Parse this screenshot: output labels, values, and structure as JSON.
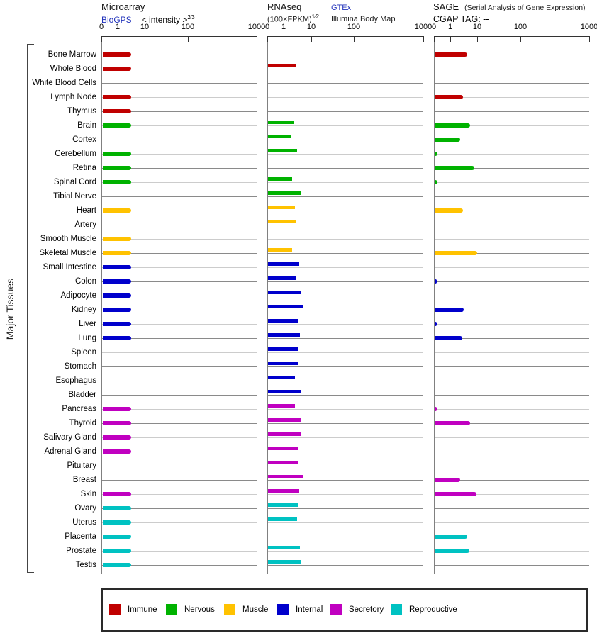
{
  "side_label": "Major Tissues",
  "headers": {
    "microarray": {
      "title": "Microarray",
      "link": "BioGPS",
      "intensity_label": "< intensity >",
      "intensity_sup": "2⁄3"
    },
    "rnaseq": {
      "title": "RNAseq",
      "formula": "(100×FPKM)",
      "formula_sup": "1⁄2",
      "link": "GTEx",
      "link_subtitle": "Illumina Body Map"
    },
    "sage": {
      "title": "SAGE",
      "title_note": "(Serial Analysis of Gene Expression)",
      "tag_label": "CGAP TAG:  --"
    }
  },
  "chart_data": {
    "type": "bar",
    "orientation": "horizontal",
    "side_label": "Major Tissues",
    "categories": [
      "Bone Marrow",
      "Whole Blood",
      "White Blood Cells",
      "Lymph Node",
      "Thymus",
      "Brain",
      "Cortex",
      "Cerebellum",
      "Retina",
      "Spinal Cord",
      "Tibial Nerve",
      "Heart",
      "Artery",
      "Smooth Muscle",
      "Skeletal Muscle",
      "Small Intestine",
      "Colon",
      "Adipocyte",
      "Kidney",
      "Liver",
      "Lung",
      "Spleen",
      "Stomach",
      "Esophagus",
      "Bladder",
      "Pancreas",
      "Thyroid",
      "Salivary Gland",
      "Adrenal Gland",
      "Pituitary",
      "Breast",
      "Skin",
      "Ovary",
      "Uterus",
      "Placenta",
      "Prostate",
      "Testis"
    ],
    "tissue_categories": [
      "immune",
      "immune",
      "immune",
      "immune",
      "immune",
      "nervous",
      "nervous",
      "nervous",
      "nervous",
      "nervous",
      "nervous",
      "muscle",
      "muscle",
      "muscle",
      "muscle",
      "internal",
      "internal",
      "internal",
      "internal",
      "internal",
      "internal",
      "internal",
      "internal",
      "internal",
      "internal",
      "secretory",
      "secretory",
      "secretory",
      "secretory",
      "secretory",
      "secretory",
      "secretory",
      "reproductive",
      "reproductive",
      "reproductive",
      "reproductive",
      "reproductive"
    ],
    "category_colors": {
      "immune": "#C00000",
      "nervous": "#00B200",
      "muscle": "#FFC200",
      "internal": "#0000CC",
      "secretory": "#C000C0",
      "reproductive": "#00C2C2"
    },
    "axis": {
      "tick_labels": [
        "0",
        "1",
        "10",
        "100",
        "1000"
      ],
      "tick_positions_pct": [
        0,
        10.5,
        28,
        55.5,
        100
      ],
      "range": [
        0,
        1000
      ],
      "scale": "nonlinear compressed log-like scale"
    },
    "value_unit": "bar length as % of panel axis width",
    "series": [
      {
        "name": "Microarray",
        "values": [
          18.3,
          18.3,
          null,
          18.3,
          18.3,
          18.3,
          null,
          18.3,
          18.3,
          18.3,
          null,
          18.3,
          null,
          18.3,
          18.3,
          18.3,
          18.3,
          18.3,
          18.3,
          18.3,
          18.3,
          null,
          null,
          null,
          null,
          18.3,
          18.3,
          18.3,
          18.3,
          null,
          null,
          18.3,
          18.3,
          18.3,
          18.3,
          18.3,
          18.3
        ]
      },
      {
        "name": "RNAseq",
        "values": [
          null,
          17.7,
          null,
          null,
          null,
          16.8,
          15.0,
          18.6,
          null,
          15.5,
          20.9,
          17.3,
          18.2,
          null,
          15.5,
          20.0,
          18.2,
          21.4,
          22.3,
          19.5,
          20.5,
          19.5,
          19.1,
          17.3,
          20.9,
          17.3,
          20.9,
          21.4,
          19.1,
          19.1,
          22.7,
          20.0,
          19.1,
          18.6,
          null,
          20.5,
          21.4
        ]
      },
      {
        "name": "SAGE",
        "values": [
          20.5,
          null,
          null,
          17.8,
          null,
          22.4,
          16.0,
          1.5,
          25.1,
          1.5,
          null,
          17.8,
          null,
          null,
          26.9,
          null,
          1.0,
          null,
          18.3,
          1.0,
          17.4,
          null,
          null,
          null,
          null,
          1.0,
          22.4,
          null,
          null,
          null,
          16.0,
          26.5,
          null,
          null,
          20.5,
          21.9,
          null
        ]
      }
    ],
    "legend": [
      {
        "label": "Immune",
        "key": "immune"
      },
      {
        "label": "Nervous",
        "key": "nervous"
      },
      {
        "label": "Muscle",
        "key": "muscle"
      },
      {
        "label": "Internal",
        "key": "internal"
      },
      {
        "label": "Secretory",
        "key": "secretory"
      },
      {
        "label": "Reproductive",
        "key": "reproductive"
      }
    ]
  }
}
